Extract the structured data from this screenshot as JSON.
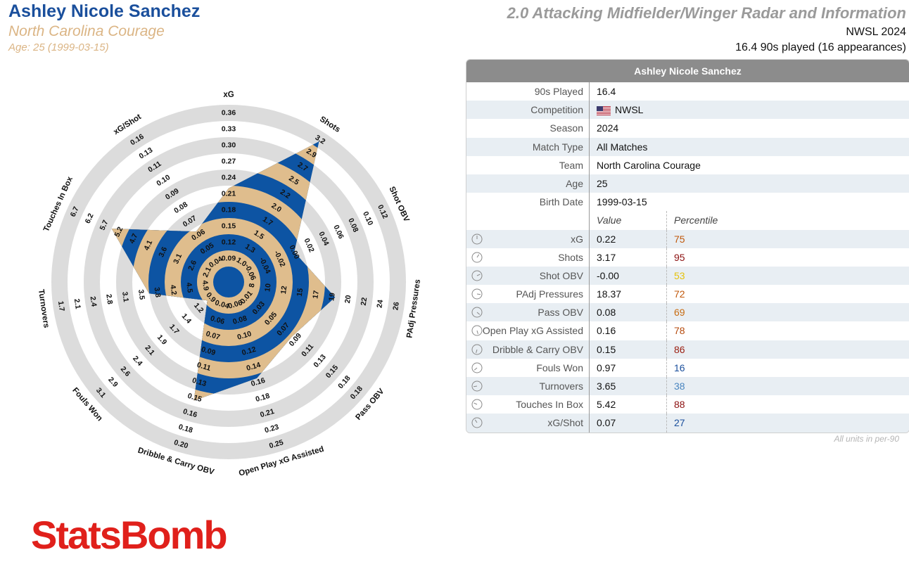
{
  "header": {
    "player_name": "Ashley Nicole Sanchez",
    "team": "North Carolina Courage",
    "age_line": "Age: 25 (1999-03-15)",
    "chart_title": "2.0 Attacking Midfielder/Winger Radar and Information",
    "competition_season": "NWSL 2024",
    "played_line": "16.4 90s played (16 appearances)"
  },
  "colors": {
    "blue": "#0d54a3",
    "tan": "#dfbd8d",
    "ring_gray": "#dcdcdc",
    "accent_text": "#dbb585"
  },
  "chart_data": {
    "type": "radar",
    "metrics": [
      {
        "name": "xG",
        "value": 0.22,
        "ticks": [
          "0.09",
          "0.12",
          "0.15",
          "0.18",
          "0.21",
          "0.24",
          "0.27",
          "0.30",
          "0.33",
          "0.36"
        ]
      },
      {
        "name": "Shots",
        "value": 3.17,
        "ticks": [
          "1.0",
          "1.3",
          "1.5",
          "1.7",
          "2.0",
          "2.2",
          "2.5",
          "2.7",
          "2.9",
          "3.2"
        ]
      },
      {
        "name": "Shot OBV",
        "value": -0.0,
        "ticks": [
          "-0.06",
          "-0.04",
          "-0.02",
          "0.00",
          "0.02",
          "0.04",
          "0.06",
          "0.08",
          "0.10",
          "0.12"
        ]
      },
      {
        "name": "PAdj Pressures",
        "value": 18.37,
        "ticks": [
          "8",
          "10",
          "12",
          "15",
          "17",
          "19",
          "20",
          "22",
          "24",
          "26"
        ]
      },
      {
        "name": "Pass OBV",
        "value": 0.08,
        "ticks": [
          "0.01",
          "0.03",
          "0.05",
          "0.07",
          "0.09",
          "0.11",
          "0.13",
          "0.15",
          "0.18",
          "0.18"
        ]
      },
      {
        "name": "Open Play xG Assisted",
        "value": 0.16,
        "ticks": [
          "0.06",
          "0.08",
          "0.10",
          "0.12",
          "0.14",
          "0.16",
          "0.18",
          "0.21",
          "0.23",
          "0.25"
        ]
      },
      {
        "name": "Dribble & Carry OBV",
        "value": 0.15,
        "ticks": [
          "0.04",
          "0.06",
          "0.07",
          "0.09",
          "0.11",
          "0.13",
          "0.15",
          "0.16",
          "0.18",
          "0.20"
        ]
      },
      {
        "name": "Fouls Won",
        "value": 0.97,
        "ticks": [
          "0.9",
          "1.2",
          "1.4",
          "1.7",
          "1.9",
          "2.1",
          "2.4",
          "2.6",
          "2.9",
          "3.1"
        ]
      },
      {
        "name": "Turnovers",
        "value": 3.65,
        "ticks": [
          "4.9",
          "4.5",
          "4.2",
          "3.8",
          "3.5",
          "3.1",
          "2.8",
          "2.4",
          "2.1",
          "1.7"
        ]
      },
      {
        "name": "Touches In Box",
        "value": 5.42,
        "ticks": [
          "2.1",
          "2.6",
          "3.1",
          "3.6",
          "4.1",
          "4.7",
          "5.2",
          "5.7",
          "6.2",
          "6.7"
        ]
      },
      {
        "name": "xG/Shot",
        "value": 0.07,
        "ticks": [
          "0.04",
          "0.05",
          "0.06",
          "0.07",
          "0.08",
          "0.09",
          "0.10",
          "0.11",
          "0.13",
          "0.16"
        ]
      }
    ]
  },
  "table": {
    "title": "Ashley Nicole Sanchez",
    "info_rows": [
      {
        "label": "90s Played",
        "value": "16.4"
      },
      {
        "label": "Competition",
        "value": "NWSL"
      },
      {
        "label": "Season",
        "value": "2024"
      },
      {
        "label": "Match Type",
        "value": "All Matches"
      },
      {
        "label": "Team",
        "value": "North Carolina Courage"
      },
      {
        "label": "Age",
        "value": "25"
      },
      {
        "label": "Birth Date",
        "value": "1999-03-15"
      }
    ],
    "value_header": "Value",
    "percentile_header": "Percentile",
    "metric_rows": [
      {
        "label": "xG",
        "value": "0.22",
        "percentile": "75",
        "color": "#c0580b"
      },
      {
        "label": "Shots",
        "value": "3.17",
        "percentile": "95",
        "color": "#8c1010"
      },
      {
        "label": "Shot OBV",
        "value": "-0.00",
        "percentile": "53",
        "color": "#e6c20b"
      },
      {
        "label": "PAdj Pressures",
        "value": "18.37",
        "percentile": "72",
        "color": "#c0580b"
      },
      {
        "label": "Pass OBV",
        "value": "0.08",
        "percentile": "69",
        "color": "#c86c12"
      },
      {
        "label": "Open Play xG Assisted",
        "value": "0.16",
        "percentile": "78",
        "color": "#b54a0c"
      },
      {
        "label": "Dribble & Carry OBV",
        "value": "0.15",
        "percentile": "86",
        "color": "#9a1c0e"
      },
      {
        "label": "Fouls Won",
        "value": "0.97",
        "percentile": "16",
        "color": "#1a4f9c"
      },
      {
        "label": "Turnovers",
        "value": "3.65",
        "percentile": "38",
        "color": "#4a86c0"
      },
      {
        "label": "Touches In Box",
        "value": "5.42",
        "percentile": "88",
        "color": "#8c1010"
      },
      {
        "label": "xG/Shot",
        "value": "0.07",
        "percentile": "27",
        "color": "#1a4f9c"
      }
    ],
    "units_note": "All units in per-90"
  },
  "logo_text": "StatsBomb"
}
